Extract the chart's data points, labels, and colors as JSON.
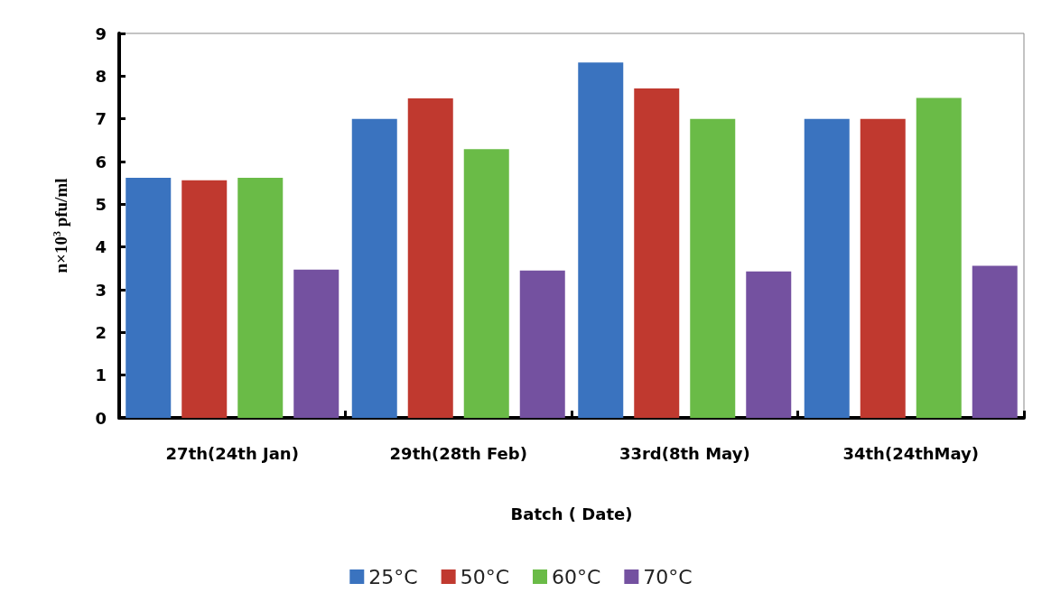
{
  "chart_data": {
    "type": "bar",
    "xlabel": "Batch ( Date)",
    "ylabel": "n×10$^{3}$ pfu/ml",
    "categories": [
      "27th(24th Jan)",
      "29th(28th Feb)",
      "33rd(8th May)",
      "34th(24thMay)"
    ],
    "series": [
      {
        "name": "25°C",
        "color": "#3a73bf",
        "values": [
          5.62,
          7.0,
          8.32,
          7.0
        ]
      },
      {
        "name": "50°C",
        "color": "#c0392f",
        "values": [
          5.56,
          7.48,
          7.71,
          7.0
        ]
      },
      {
        "name": "60°C",
        "color": "#6abb47",
        "values": [
          5.62,
          6.29,
          7.0,
          7.49
        ]
      },
      {
        "name": "70°C",
        "color": "#7451a0",
        "values": [
          3.47,
          3.45,
          3.43,
          3.56
        ]
      }
    ],
    "ylim": [
      0,
      9
    ],
    "yticks": [
      0,
      1,
      2,
      3,
      4,
      5,
      6,
      7,
      8,
      9
    ],
    "grid": false,
    "legend": "bottom"
  }
}
